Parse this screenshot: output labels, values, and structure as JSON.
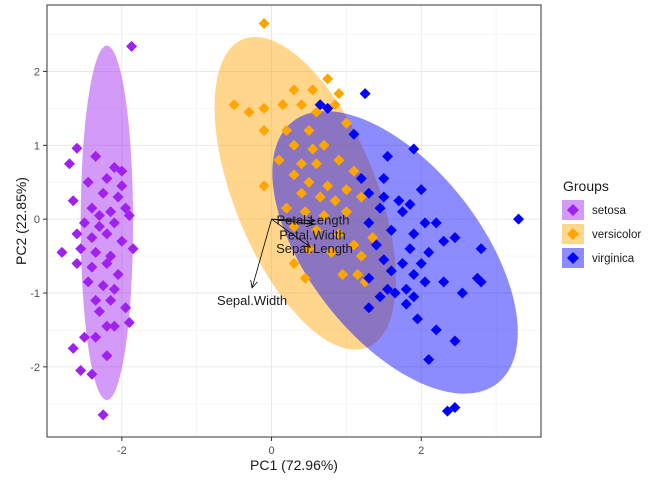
{
  "chart_data": {
    "type": "scatter",
    "title": "",
    "xlabel": "PC1 (72.96%)",
    "ylabel": "PC2 (22.85%)",
    "xlim": [
      -3.0,
      3.6
    ],
    "ylim": [
      -2.95,
      2.9
    ],
    "xticks": [
      -2,
      0,
      2
    ],
    "yticks": [
      -2,
      -1,
      0,
      1,
      2
    ],
    "xtick_labels": [
      "-2",
      "0",
      "2"
    ],
    "ytick_labels": [
      "-2",
      "-1",
      "0",
      "1",
      "2"
    ],
    "grid": true,
    "legend": {
      "title": "Groups",
      "position": "right"
    },
    "series": [
      {
        "name": "setosa",
        "color": "#a020f0",
        "ellipse": {
          "cx": -2.2,
          "cy": -0.05,
          "rx": 0.35,
          "ry": 2.4,
          "angle_deg": 0
        },
        "points": [
          [
            -1.87,
            2.34
          ],
          [
            -2.6,
            0.96
          ],
          [
            -2.7,
            0.75
          ],
          [
            -2.35,
            0.85
          ],
          [
            -2.1,
            0.7
          ],
          [
            -2.2,
            0.55
          ],
          [
            -2.0,
            0.65
          ],
          [
            -2.45,
            0.5
          ],
          [
            -2.25,
            0.35
          ],
          [
            -2.05,
            0.3
          ],
          [
            -2.65,
            0.25
          ],
          [
            -2.4,
            0.15
          ],
          [
            -2.15,
            0.1
          ],
          [
            -1.95,
            0.15
          ],
          [
            -2.5,
            -0.05
          ],
          [
            -2.3,
            -0.1
          ],
          [
            -2.1,
            -0.05
          ],
          [
            -1.9,
            0.05
          ],
          [
            -2.6,
            -0.2
          ],
          [
            -2.4,
            -0.25
          ],
          [
            -2.2,
            -0.2
          ],
          [
            -2.0,
            -0.3
          ],
          [
            -2.8,
            -0.45
          ],
          [
            -2.55,
            -0.4
          ],
          [
            -2.35,
            -0.45
          ],
          [
            -2.15,
            -0.5
          ],
          [
            -1.85,
            -0.4
          ],
          [
            -2.6,
            -0.6
          ],
          [
            -2.4,
            -0.65
          ],
          [
            -2.2,
            -0.6
          ],
          [
            -2.45,
            -0.85
          ],
          [
            -2.25,
            -0.9
          ],
          [
            -2.1,
            -0.95
          ],
          [
            -2.35,
            -1.1
          ],
          [
            -2.15,
            -1.1
          ],
          [
            -2.3,
            -1.25
          ],
          [
            -1.95,
            -1.2
          ],
          [
            -2.2,
            -1.45
          ],
          [
            -2.1,
            -1.45
          ],
          [
            -1.9,
            -1.4
          ],
          [
            -2.5,
            -1.6
          ],
          [
            -2.35,
            -1.6
          ],
          [
            -2.65,
            -1.75
          ],
          [
            -2.2,
            -1.85
          ],
          [
            -2.4,
            -2.1
          ],
          [
            -2.55,
            -2.05
          ],
          [
            -2.25,
            -2.65
          ],
          [
            -2.0,
            0.45
          ],
          [
            -2.3,
            0.05
          ],
          [
            -2.05,
            -0.75
          ]
        ]
      },
      {
        "name": "versicolor",
        "color": "#ffa500",
        "ellipse": {
          "cx": 0.45,
          "cy": 0.35,
          "rx": 0.95,
          "ry": 2.25,
          "angle_deg": -22
        },
        "points": [
          [
            -0.1,
            2.65
          ],
          [
            0.55,
            1.75
          ],
          [
            0.3,
            1.75
          ],
          [
            0.75,
            1.9
          ],
          [
            0.9,
            1.7
          ],
          [
            -0.5,
            1.55
          ],
          [
            -0.3,
            1.45
          ],
          [
            -0.1,
            1.5
          ],
          [
            0.15,
            1.55
          ],
          [
            0.4,
            1.55
          ],
          [
            0.6,
            1.45
          ],
          [
            0.85,
            1.55
          ],
          [
            1.0,
            1.3
          ],
          [
            -0.1,
            1.2
          ],
          [
            0.2,
            1.2
          ],
          [
            0.5,
            1.2
          ],
          [
            0.3,
            1.0
          ],
          [
            0.55,
            0.95
          ],
          [
            0.7,
            1.0
          ],
          [
            0.1,
            0.8
          ],
          [
            0.4,
            0.75
          ],
          [
            0.6,
            0.75
          ],
          [
            0.9,
            0.8
          ],
          [
            1.1,
            0.65
          ],
          [
            0.3,
            0.6
          ],
          [
            0.5,
            0.5
          ],
          [
            0.75,
            0.45
          ],
          [
            1.0,
            0.4
          ],
          [
            0.4,
            0.35
          ],
          [
            0.65,
            0.3
          ],
          [
            0.85,
            0.25
          ],
          [
            1.2,
            0.3
          ],
          [
            -0.1,
            0.45
          ],
          [
            0.2,
            0.15
          ],
          [
            0.45,
            0.1
          ],
          [
            0.7,
            0.05
          ],
          [
            1.0,
            0.1
          ],
          [
            0.3,
            -0.1
          ],
          [
            0.6,
            -0.15
          ],
          [
            0.9,
            -0.2
          ],
          [
            1.1,
            -0.35
          ],
          [
            0.5,
            -0.4
          ],
          [
            0.8,
            -0.45
          ],
          [
            1.2,
            -0.5
          ],
          [
            0.45,
            -0.8
          ],
          [
            0.95,
            -0.75
          ],
          [
            1.15,
            -0.75
          ],
          [
            1.25,
            -0.85
          ],
          [
            0.3,
            -0.6
          ],
          [
            1.35,
            -0.25
          ]
        ]
      },
      {
        "name": "virginica",
        "color": "#0000ff",
        "ellipse": {
          "cx": 1.65,
          "cy": -0.45,
          "rx": 1.15,
          "ry": 2.25,
          "angle_deg": -38
        },
        "points": [
          [
            1.25,
            1.7
          ],
          [
            1.1,
            1.15
          ],
          [
            0.75,
            1.5
          ],
          [
            0.65,
            1.55
          ],
          [
            1.2,
            0.55
          ],
          [
            1.5,
            0.55
          ],
          [
            1.9,
            0.95
          ],
          [
            1.55,
            0.85
          ],
          [
            2.0,
            0.4
          ],
          [
            1.3,
            0.35
          ],
          [
            1.5,
            0.3
          ],
          [
            1.7,
            0.25
          ],
          [
            1.85,
            0.2
          ],
          [
            1.45,
            0.15
          ],
          [
            1.75,
            0.1
          ],
          [
            2.05,
            -0.05
          ],
          [
            2.2,
            -0.05
          ],
          [
            1.3,
            -0.05
          ],
          [
            1.6,
            -0.15
          ],
          [
            1.9,
            -0.2
          ],
          [
            2.45,
            -0.25
          ],
          [
            1.4,
            -0.35
          ],
          [
            1.85,
            -0.4
          ],
          [
            2.1,
            -0.45
          ],
          [
            2.3,
            -0.3
          ],
          [
            2.8,
            -0.4
          ],
          [
            1.5,
            -0.55
          ],
          [
            1.75,
            -0.6
          ],
          [
            2.0,
            -0.6
          ],
          [
            1.6,
            -0.7
          ],
          [
            1.9,
            -0.75
          ],
          [
            1.3,
            -0.8
          ],
          [
            2.05,
            -0.85
          ],
          [
            2.3,
            -0.85
          ],
          [
            2.75,
            -0.8
          ],
          [
            2.8,
            -0.85
          ],
          [
            1.55,
            -0.95
          ],
          [
            1.8,
            -0.95
          ],
          [
            1.45,
            -1.05
          ],
          [
            1.65,
            -1.0
          ],
          [
            1.9,
            -1.05
          ],
          [
            2.55,
            -1.0
          ],
          [
            1.3,
            -1.2
          ],
          [
            1.8,
            -1.15
          ],
          [
            1.95,
            -1.35
          ],
          [
            2.2,
            -1.5
          ],
          [
            2.45,
            -1.65
          ],
          [
            2.1,
            -1.9
          ],
          [
            2.45,
            -2.55
          ],
          [
            2.35,
            -2.6
          ]
        ]
      }
    ],
    "variables": [
      {
        "name": "Sepal.Length",
        "x": 0.52,
        "y": -0.38
      },
      {
        "name": "Sepal.Width",
        "x": -0.26,
        "y": -0.93
      },
      {
        "name": "Petal.Length",
        "x": 0.58,
        "y": -0.02
      },
      {
        "name": "Petal.Width",
        "x": 0.56,
        "y": -0.07
      }
    ],
    "outlier_points": [
      {
        "group": "virginica",
        "x": 3.3,
        "y": 0.0
      }
    ]
  }
}
